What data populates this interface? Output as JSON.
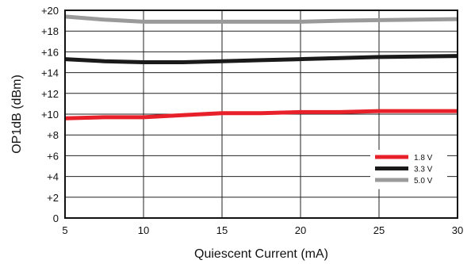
{
  "chart_data": {
    "type": "line",
    "title": "",
    "xlabel": "Quiescent Current (mA)",
    "ylabel": "OP1dB (dBm)",
    "xlim": [
      5,
      30
    ],
    "ylim": [
      0,
      20
    ],
    "xticks": [
      5,
      10,
      15,
      20,
      25,
      30
    ],
    "xtick_labels": [
      "5",
      "10",
      "15",
      "20",
      "25",
      "30"
    ],
    "yticks": [
      0,
      2,
      4,
      6,
      8,
      10,
      12,
      14,
      16,
      18,
      20
    ],
    "ytick_labels": [
      "0",
      "+2",
      "+4",
      "+6",
      "+8",
      "+10",
      "+12",
      "+14",
      "+16",
      "+18",
      "+20"
    ],
    "grid": true,
    "legend_position": "bottom-right",
    "series": [
      {
        "name": "1.8 V",
        "color": "#e8202a",
        "x": [
          5,
          7.5,
          10,
          12.5,
          15,
          17.5,
          20,
          22.5,
          25,
          27.5,
          30
        ],
        "y": [
          9.6,
          9.7,
          9.7,
          9.9,
          10.1,
          10.1,
          10.2,
          10.2,
          10.3,
          10.3,
          10.3
        ]
      },
      {
        "name": "3.3 V",
        "color": "#1a1a1a",
        "x": [
          5,
          7.5,
          10,
          12.5,
          15,
          17.5,
          20,
          22.5,
          25,
          27.5,
          30
        ],
        "y": [
          15.3,
          15.1,
          15.0,
          15.0,
          15.1,
          15.2,
          15.3,
          15.4,
          15.5,
          15.55,
          15.6
        ]
      },
      {
        "name": "5.0 V",
        "color": "#9a9a9a",
        "x": [
          5,
          7.5,
          10,
          12.5,
          15,
          17.5,
          20,
          22.5,
          25,
          27.5,
          30
        ],
        "y": [
          19.4,
          19.1,
          18.9,
          18.9,
          18.9,
          18.9,
          18.9,
          19.0,
          19.05,
          19.1,
          19.15
        ]
      }
    ]
  }
}
